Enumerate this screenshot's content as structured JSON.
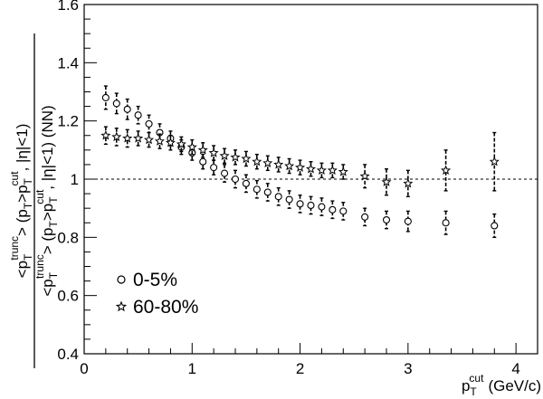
{
  "chart_data": {
    "type": "scatter",
    "xlim": [
      0,
      4.2
    ],
    "ylim": [
      0.4,
      1.6
    ],
    "x_ticks": [
      0,
      1,
      2,
      3,
      4
    ],
    "y_ticks": [
      0.4,
      0.6,
      0.8,
      1,
      1.2,
      1.4,
      1.6
    ],
    "x_tick_labels": [
      "0",
      "1",
      "2",
      "3",
      "4"
    ],
    "y_tick_labels": [
      "0.4",
      "0.6",
      "0.8",
      "1",
      "1.2",
      "1.4",
      "1.6"
    ],
    "reference_line": {
      "y": 1,
      "style": "dashed"
    },
    "xlabel": {
      "base": "p",
      "sub": "T",
      "sup": "cut",
      "unit": "(GeV/c)"
    },
    "ylabel": {
      "numerator": {
        "open": "<p",
        "sub1": "T",
        "sup1": "trunc",
        "mid": "> (p",
        "sub2": "T",
        "gt": ">p",
        "sub3": "T",
        "sup3": "cut",
        "tail": ", |η|<1)"
      },
      "denominator": {
        "open": "<p",
        "sub1": "T",
        "sup1": "trunc",
        "mid": "> (p",
        "sub2": "T",
        "gt": ">p",
        "sub3": "T",
        "sup3": "cut",
        "tail": ", |η|<1) (NN)"
      }
    },
    "legend": {
      "placement": "bottom-left",
      "entries": [
        {
          "label": "0-5%",
          "marker": "open-circle"
        },
        {
          "label": "60-80%",
          "marker": "open-star"
        }
      ]
    },
    "series": [
      {
        "name": "0-5%",
        "marker": "open-circle",
        "x": [
          0.2,
          0.3,
          0.4,
          0.5,
          0.6,
          0.7,
          0.8,
          0.9,
          1.0,
          1.1,
          1.2,
          1.3,
          1.4,
          1.5,
          1.6,
          1.7,
          1.8,
          1.9,
          2.0,
          2.1,
          2.2,
          2.3,
          2.4,
          2.6,
          2.8,
          3.0,
          3.35,
          3.8
        ],
        "y": [
          1.28,
          1.26,
          1.24,
          1.22,
          1.19,
          1.16,
          1.14,
          1.11,
          1.09,
          1.06,
          1.04,
          1.02,
          1.0,
          0.985,
          0.965,
          0.955,
          0.94,
          0.93,
          0.915,
          0.91,
          0.905,
          0.895,
          0.89,
          0.87,
          0.86,
          0.855,
          0.85,
          0.84
        ],
        "err": [
          0.04,
          0.035,
          0.035,
          0.03,
          0.03,
          0.03,
          0.025,
          0.025,
          0.025,
          0.025,
          0.025,
          0.03,
          0.03,
          0.03,
          0.03,
          0.03,
          0.03,
          0.03,
          0.03,
          0.03,
          0.03,
          0.03,
          0.03,
          0.03,
          0.03,
          0.035,
          0.04,
          0.04
        ]
      },
      {
        "name": "60-80%",
        "marker": "open-star",
        "x": [
          0.2,
          0.3,
          0.4,
          0.5,
          0.6,
          0.7,
          0.8,
          0.9,
          1.0,
          1.1,
          1.2,
          1.3,
          1.4,
          1.5,
          1.6,
          1.7,
          1.8,
          1.9,
          2.0,
          2.1,
          2.2,
          2.3,
          2.4,
          2.6,
          2.8,
          3.0,
          3.35,
          3.8
        ],
        "y": [
          1.15,
          1.145,
          1.14,
          1.14,
          1.135,
          1.13,
          1.125,
          1.12,
          1.11,
          1.1,
          1.09,
          1.08,
          1.075,
          1.07,
          1.06,
          1.055,
          1.05,
          1.045,
          1.04,
          1.035,
          1.03,
          1.03,
          1.025,
          1.01,
          0.99,
          0.985,
          1.03,
          1.06
        ],
        "err": [
          0.03,
          0.03,
          0.03,
          0.025,
          0.025,
          0.025,
          0.025,
          0.025,
          0.025,
          0.025,
          0.025,
          0.025,
          0.025,
          0.025,
          0.025,
          0.025,
          0.025,
          0.025,
          0.025,
          0.025,
          0.025,
          0.025,
          0.025,
          0.04,
          0.045,
          0.045,
          0.07,
          0.1
        ]
      }
    ]
  }
}
